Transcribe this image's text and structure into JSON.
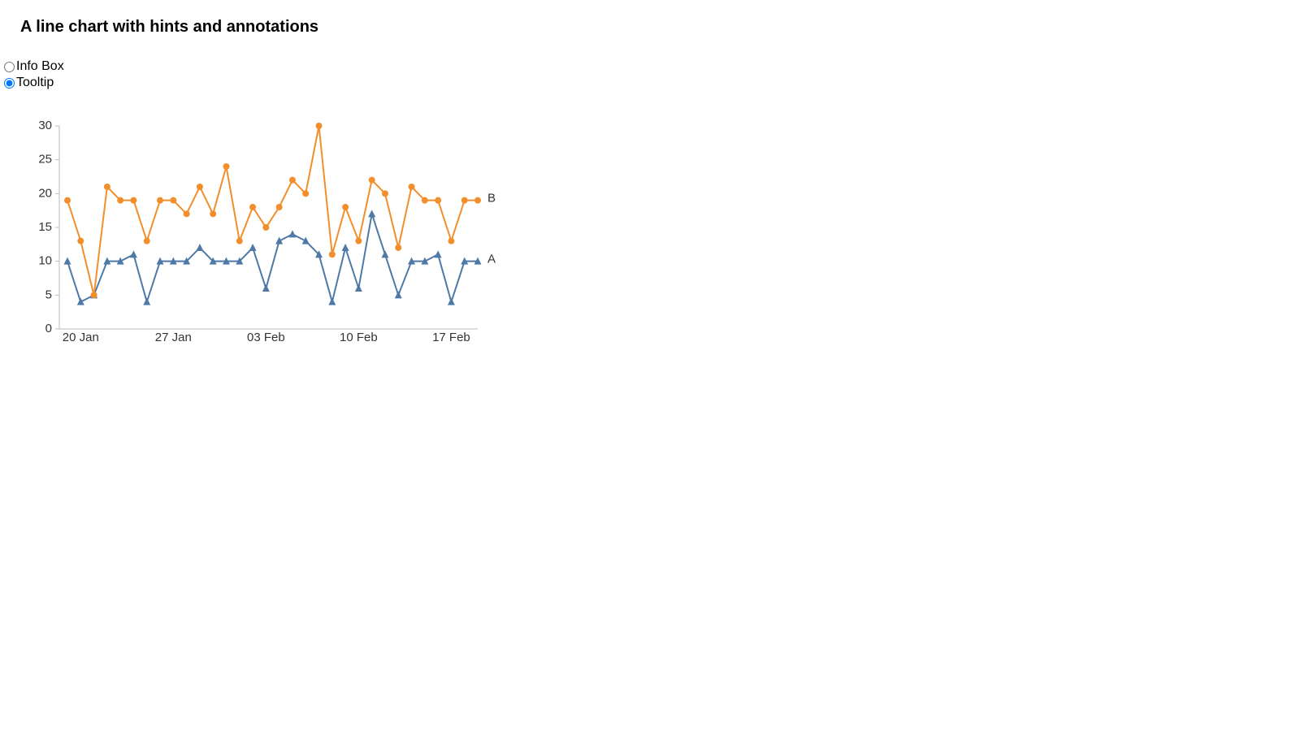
{
  "controls": {
    "options": [
      "Info Box",
      "Tooltip"
    ],
    "selected": "Tooltip"
  },
  "chart_data": {
    "type": "line",
    "title": "A line chart with hints and annotations",
    "x": [
      "19 Jan",
      "20 Jan",
      "21 Jan",
      "22 Jan",
      "23 Jan",
      "24 Jan",
      "25 Jan",
      "26 Jan",
      "27 Jan",
      "28 Jan",
      "29 Jan",
      "30 Jan",
      "31 Jan",
      "01 Feb",
      "02 Feb",
      "03 Feb",
      "04 Feb",
      "05 Feb",
      "06 Feb",
      "07 Feb",
      "08 Feb",
      "09 Feb",
      "10 Feb",
      "11 Feb",
      "12 Feb",
      "13 Feb",
      "14 Feb",
      "15 Feb",
      "16 Feb",
      "17 Feb",
      "18 Feb",
      "19 Feb"
    ],
    "xticks": [
      "20 Jan",
      "27 Jan",
      "03 Feb",
      "10 Feb",
      "17 Feb"
    ],
    "series": [
      {
        "name": "A",
        "color": "#4e79a7",
        "marker": "triangle",
        "values": [
          10,
          4,
          5,
          10,
          10,
          11,
          4,
          10,
          10,
          10,
          12,
          10,
          10,
          10,
          12,
          6,
          13,
          14,
          13,
          11,
          4,
          12,
          6,
          17,
          11,
          5,
          10,
          10,
          11,
          4,
          10,
          10
        ]
      },
      {
        "name": "B",
        "color": "#f28e2b",
        "marker": "circle",
        "values": [
          19,
          13,
          5,
          21,
          19,
          19,
          13,
          19,
          19,
          17,
          21,
          17,
          24,
          13,
          18,
          15,
          18,
          22,
          20,
          30,
          11,
          18,
          13,
          22,
          20,
          12,
          21,
          19,
          19,
          13,
          19,
          19
        ]
      }
    ],
    "ylim": [
      0,
      30
    ],
    "yticks": [
      0,
      5,
      10,
      15,
      20,
      25,
      30
    ],
    "grid": false
  }
}
